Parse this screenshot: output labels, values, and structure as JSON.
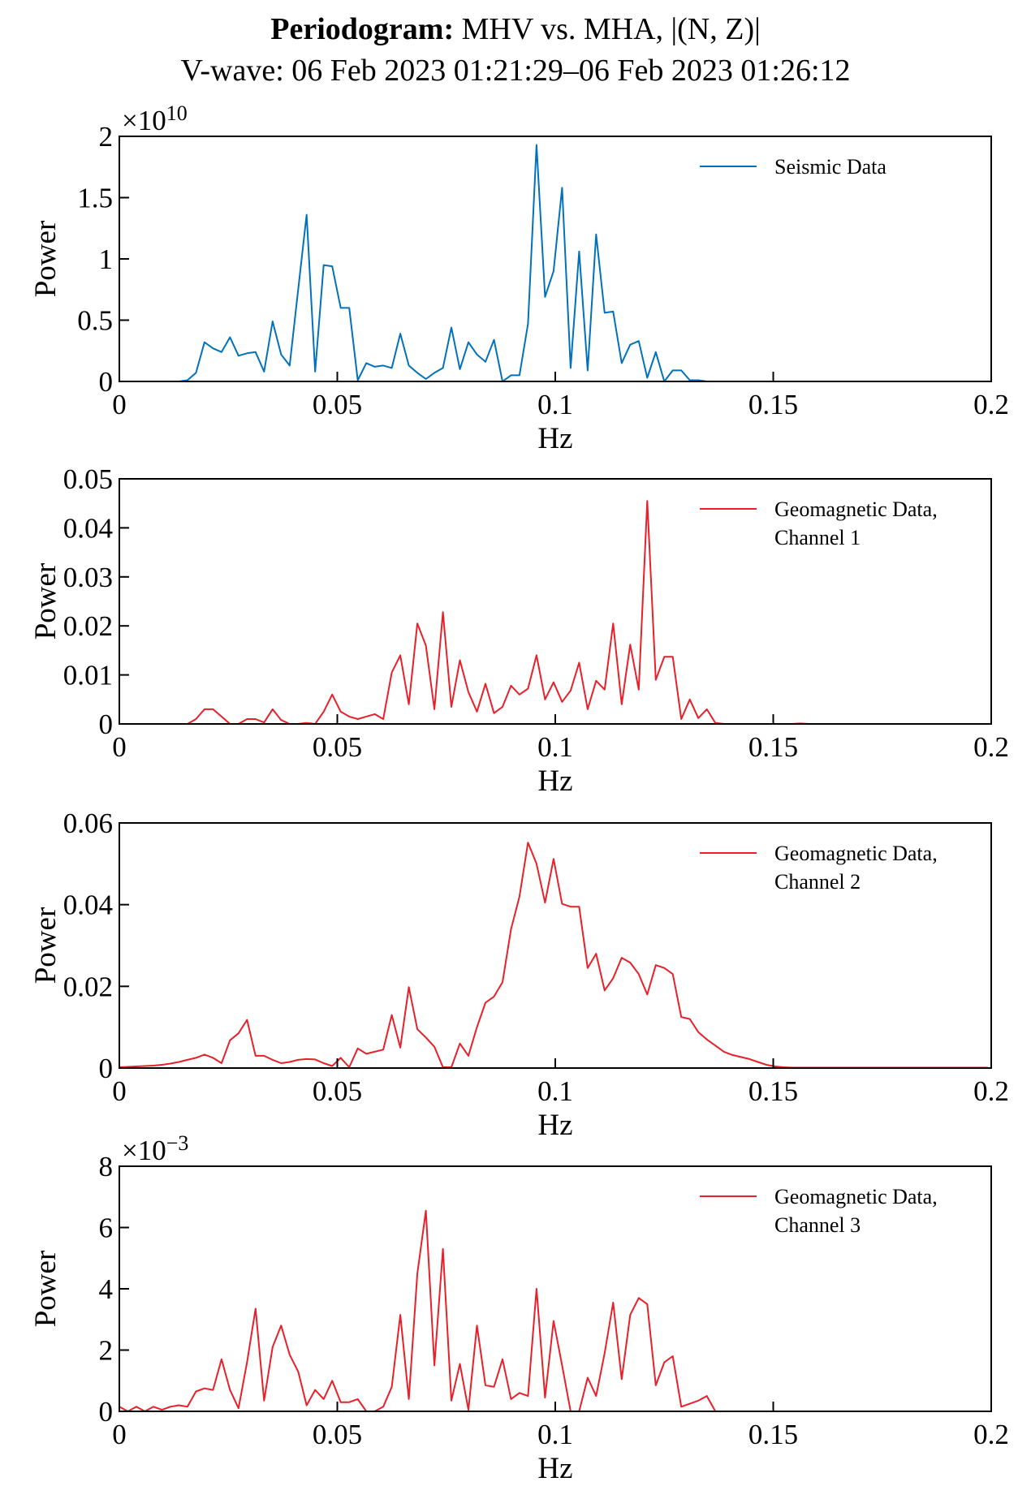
{
  "title": {
    "bold": "Periodogram:",
    "rest": " MHV vs. MHA, |(N, Z)|",
    "subtitle": "V-wave: 06 Feb 2023 01:21:29–06 Feb 2023 01:26:12"
  },
  "colors": {
    "seismic": "#0072BD",
    "geomagnetic": "#E8202A",
    "axis": "#000000"
  },
  "chart_data": [
    {
      "type": "line",
      "xlabel": "Hz",
      "ylabel": "Power",
      "xlim": [
        0,
        0.2
      ],
      "ylim": [
        0,
        2
      ],
      "exponent": "×10^10",
      "exponent_base": "×10",
      "exponent_power": "10",
      "xticks": [
        "0",
        "0.05",
        "0.1",
        "0.15",
        "0.2"
      ],
      "yticks": [
        "0",
        "0.5",
        "1",
        "1.5",
        "2"
      ],
      "legend": [
        "Seismic Data"
      ],
      "legend_placement": "top-right",
      "color": "#0072BD",
      "x_step": 0.001953125,
      "values": [
        0,
        0,
        0,
        0,
        0,
        0,
        0,
        0,
        0.01,
        0.07,
        0.32,
        0.27,
        0.24,
        0.36,
        0.21,
        0.23,
        0.24,
        0.08,
        0.49,
        0.22,
        0.13,
        0.75,
        1.36,
        0.08,
        0.95,
        0.94,
        0.6,
        0.6,
        0.01,
        0.15,
        0.12,
        0.13,
        0.11,
        0.39,
        0.13,
        0.07,
        0.02,
        0.07,
        0.11,
        0.44,
        0.1,
        0.32,
        0.22,
        0.16,
        0.34,
        0,
        0.05,
        0.05,
        0.47,
        1.93,
        0.69,
        0.9,
        1.58,
        0.11,
        1.06,
        0.09,
        1.2,
        0.56,
        0.57,
        0.15,
        0.3,
        0.33,
        0.03,
        0.24,
        0,
        0.09,
        0.09,
        0.01,
        0.01,
        0,
        0,
        0,
        0,
        0,
        0,
        0,
        0,
        0,
        0,
        0,
        0,
        0,
        0,
        0,
        0,
        0,
        0,
        0,
        0,
        0,
        0,
        0,
        0,
        0,
        0,
        0,
        0,
        0,
        0,
        0,
        0,
        0,
        0
      ]
    },
    {
      "type": "line",
      "xlabel": "Hz",
      "ylabel": "Power",
      "xlim": [
        0,
        0.2
      ],
      "ylim": [
        0,
        0.05
      ],
      "xticks": [
        "0",
        "0.05",
        "0.1",
        "0.15",
        "0.2"
      ],
      "yticks": [
        "0",
        "0.01",
        "0.02",
        "0.03",
        "0.04",
        "0.05"
      ],
      "legend": [
        "Geomagnetic Data,",
        "Channel 1"
      ],
      "legend_placement": "top-right",
      "color": "#E8202A",
      "x_step": 0.001953125,
      "values": [
        0,
        0,
        0,
        0,
        0,
        0,
        0,
        0,
        0,
        0.001,
        0.003,
        0.003,
        0.0015,
        0,
        0,
        0.001,
        0.001,
        0.0003,
        0.003,
        0.0008,
        0,
        0,
        0.0002,
        0,
        0.0025,
        0.006,
        0.0025,
        0.0015,
        0.001,
        0.0015,
        0.002,
        0.001,
        0.0105,
        0.014,
        0.004,
        0.0205,
        0.016,
        0.003,
        0.0228,
        0.0035,
        0.013,
        0.0065,
        0.0025,
        0.0082,
        0.0022,
        0.0035,
        0.0078,
        0.006,
        0.0072,
        0.014,
        0.005,
        0.0085,
        0.0045,
        0.0068,
        0.0125,
        0.003,
        0.0088,
        0.007,
        0.0205,
        0.004,
        0.0162,
        0.007,
        0.0455,
        0.009,
        0.0137,
        0.0137,
        0.001,
        0.005,
        0.0012,
        0.003,
        0.0002,
        0,
        0,
        0,
        0,
        0,
        0,
        0,
        0,
        0,
        0.0001,
        0,
        0,
        0,
        0,
        0,
        0,
        0,
        0,
        0,
        0,
        0,
        0,
        0,
        0,
        0,
        0,
        0,
        0,
        0,
        0,
        0,
        0
      ]
    },
    {
      "type": "line",
      "xlabel": "Hz",
      "ylabel": "Power",
      "xlim": [
        0,
        0.2
      ],
      "ylim": [
        0,
        0.06
      ],
      "xticks": [
        "0",
        "0.05",
        "0.1",
        "0.15",
        "0.2"
      ],
      "yticks": [
        "0",
        "0.02",
        "0.04",
        "0.06"
      ],
      "legend": [
        "Geomagnetic Data,",
        "Channel 2"
      ],
      "legend_placement": "top-right",
      "color": "#E8202A",
      "x_step": 0.001953125,
      "values": [
        0.0002,
        0.0003,
        0.0004,
        0.0005,
        0.0006,
        0.0008,
        0.0011,
        0.0015,
        0.002,
        0.0025,
        0.0033,
        0.0025,
        0.0012,
        0.0068,
        0.0085,
        0.0118,
        0.003,
        0.003,
        0.002,
        0.0012,
        0.0015,
        0.002,
        0.0022,
        0.0021,
        0.0012,
        0.0005,
        0.0025,
        0.0002,
        0.0048,
        0.0035,
        0.004,
        0.0045,
        0.013,
        0.005,
        0.0198,
        0.0095,
        0.0075,
        0.0052,
        0.0002,
        0.0002,
        0.006,
        0.003,
        0.01,
        0.016,
        0.0175,
        0.021,
        0.034,
        0.042,
        0.0552,
        0.05,
        0.0405,
        0.0512,
        0.0402,
        0.0395,
        0.0395,
        0.0245,
        0.028,
        0.019,
        0.022,
        0.027,
        0.0258,
        0.023,
        0.018,
        0.0252,
        0.0245,
        0.023,
        0.0125,
        0.012,
        0.0088,
        0.007,
        0.0055,
        0.004,
        0.0032,
        0.0027,
        0.0022,
        0.0015,
        0.0008,
        0.0004,
        0.0002,
        0.0001,
        0.0001,
        0.0001,
        0.0001,
        0.0001,
        0.0001,
        0.0001,
        0.0001,
        0.0001,
        0.0001,
        0.0001,
        0.0001,
        0.0001,
        0.0001,
        0.0001,
        0.0001,
        0.0001,
        0.0001,
        0.0001,
        0.0001,
        0.0001,
        0.0001,
        0.0001,
        0.0001
      ]
    },
    {
      "type": "line",
      "xlabel": "Hz",
      "ylabel": "Power",
      "xlim": [
        0,
        0.2
      ],
      "ylim": [
        0,
        8
      ],
      "exponent": "×10^-3",
      "exponent_base": "×10",
      "exponent_power": "−3",
      "xticks": [
        "0",
        "0.05",
        "0.1",
        "0.15",
        "0.2"
      ],
      "yticks": [
        "0",
        "2",
        "4",
        "6",
        "8"
      ],
      "legend": [
        "Geomagnetic Data,",
        "Channel 3"
      ],
      "legend_placement": "top-right",
      "color": "#E8202A",
      "x_step": 0.001953125,
      "values": [
        0.15,
        0,
        0.15,
        0,
        0.15,
        0.05,
        0.15,
        0.2,
        0.15,
        0.65,
        0.75,
        0.7,
        1.7,
        0.7,
        0.1,
        1.6,
        3.35,
        0.35,
        2.1,
        2.8,
        1.85,
        1.3,
        0.2,
        0.7,
        0.4,
        1.0,
        0.3,
        0.3,
        0.4,
        0,
        0,
        0.15,
        0.8,
        3.15,
        0.4,
        4.5,
        6.55,
        1.5,
        5.3,
        0.35,
        1.55,
        0.05,
        2.8,
        0.85,
        0.8,
        1.7,
        0.4,
        0.6,
        0.5,
        4.0,
        0.45,
        2.95,
        1.5,
        0,
        0,
        1.1,
        0.5,
        1.9,
        3.55,
        1.05,
        3.15,
        3.7,
        3.5,
        0.85,
        1.6,
        1.8,
        0.15,
        0.25,
        0.35,
        0.5,
        0,
        0,
        0,
        0,
        0,
        0,
        0,
        0,
        0,
        0,
        0,
        0,
        0,
        0,
        0,
        0,
        0,
        0,
        0,
        0,
        0,
        0,
        0,
        0,
        0,
        0,
        0,
        0,
        0,
        0,
        0,
        0,
        0
      ]
    }
  ]
}
